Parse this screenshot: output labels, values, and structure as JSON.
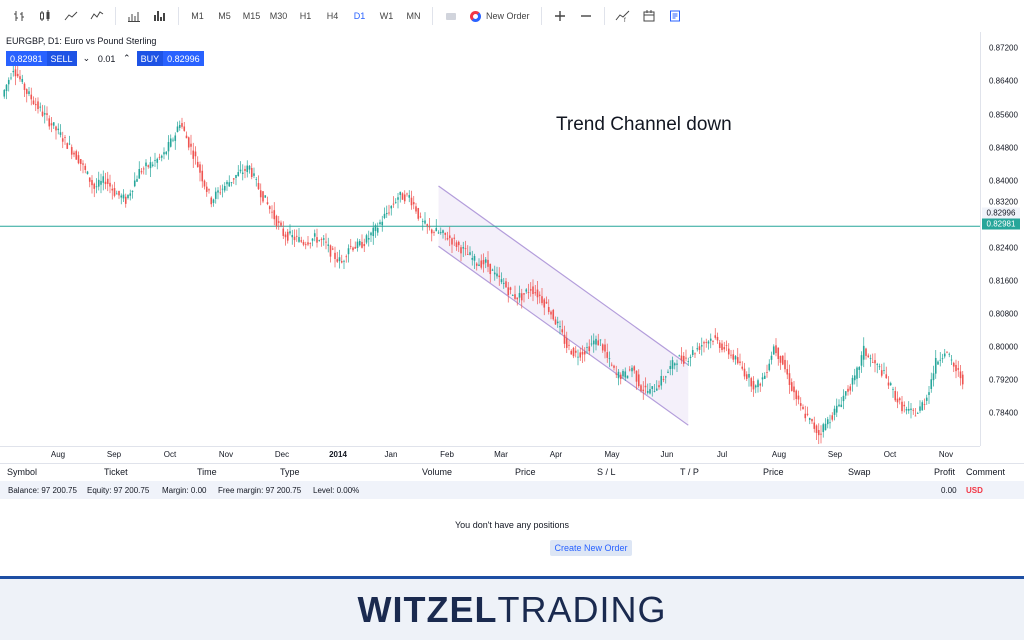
{
  "toolbar": {
    "icons": [
      "bar-chart-icon",
      "candles-icon",
      "line-icon",
      "area-icon",
      "volume-icon",
      "histogram-icon"
    ],
    "timeframes": [
      "M1",
      "M5",
      "M15",
      "M30",
      "H1",
      "H4",
      "D1",
      "W1",
      "MN"
    ],
    "active_timeframe": "D1",
    "new_order_label": "New Order",
    "tools": [
      "zoom-in-icon",
      "zoom-out-icon",
      "indicators-icon",
      "calendar-icon",
      "notes-icon"
    ]
  },
  "symbol": {
    "title": "EURGBP, D1: Euro vs Pound Sterling",
    "sell_price": "0.82981",
    "sell_label": "SELL",
    "lot": "0.01",
    "buy_label": "BUY",
    "buy_price": "0.82996"
  },
  "annotation": "Trend Channel down",
  "price_axis": {
    "ticks": [
      "0.87200",
      "0.86400",
      "0.85600",
      "0.84800",
      "0.84000",
      "0.83200",
      "0.82400",
      "0.81600",
      "0.80800",
      "0.80000",
      "0.79200",
      "0.78400"
    ],
    "ask_tag": "0.82996",
    "bid_tag": "0.82981"
  },
  "time_axis": {
    "ticks": [
      "Aug",
      "Sep",
      "Oct",
      "Nov",
      "Dec",
      "2014",
      "Jan",
      "Feb",
      "Mar",
      "Apr",
      "May",
      "Jun",
      "Jul",
      "Aug",
      "Sep",
      "Oct",
      "Nov"
    ]
  },
  "positions": {
    "columns": [
      "Symbol",
      "Ticket",
      "Time",
      "Type",
      "Volume",
      "Price",
      "S / L",
      "T / P",
      "Price",
      "Swap",
      "Profit",
      "Comment"
    ],
    "balance": "Balance: 97 200.75",
    "equity": "Equity: 97 200.75",
    "margin": "Margin: 0.00",
    "free_margin": "Free margin: 97 200.75",
    "level": "Level: 0.00%",
    "profit": "0.00",
    "currency": "USD",
    "empty_message": "You don't have any positions",
    "create_button": "Create New Order"
  },
  "brand": {
    "part1": "WITZEL",
    "part2": "TRADING"
  },
  "colors": {
    "up": "#26a69a",
    "down": "#ef5350",
    "accent": "#2962ff",
    "channel": "#b39ddb",
    "bid_line": "#26a69a"
  },
  "chart_data": {
    "type": "candlestick",
    "symbol": "EURGBP",
    "timeframe": "D1",
    "ylim": [
      0.777,
      0.8765
    ],
    "current_bid": 0.82981,
    "current_ask": 0.82996,
    "path": [
      [
        0,
        0.861
      ],
      [
        5,
        0.868
      ],
      [
        11,
        0.862
      ],
      [
        18,
        0.857
      ],
      [
        27,
        0.851
      ],
      [
        34,
        0.846
      ],
      [
        41,
        0.839
      ],
      [
        46,
        0.841
      ],
      [
        50,
        0.838
      ],
      [
        55,
        0.836
      ],
      [
        61,
        0.843
      ],
      [
        67,
        0.845
      ],
      [
        72,
        0.847
      ],
      [
        77,
        0.852
      ],
      [
        79,
        0.855
      ],
      [
        82,
        0.851
      ],
      [
        86,
        0.846
      ],
      [
        90,
        0.84
      ],
      [
        93,
        0.836
      ],
      [
        96,
        0.838
      ],
      [
        100,
        0.84
      ],
      [
        104,
        0.842
      ],
      [
        110,
        0.844
      ],
      [
        113,
        0.84
      ],
      [
        117,
        0.836
      ],
      [
        120,
        0.833
      ],
      [
        125,
        0.828
      ],
      [
        130,
        0.827
      ],
      [
        134,
        0.826
      ],
      [
        139,
        0.827
      ],
      [
        143,
        0.826
      ],
      [
        147,
        0.823
      ],
      [
        151,
        0.821
      ],
      [
        154,
        0.825
      ],
      [
        158,
        0.825
      ],
      [
        161,
        0.826
      ],
      [
        166,
        0.829
      ],
      [
        171,
        0.833
      ],
      [
        176,
        0.837
      ],
      [
        181,
        0.837
      ],
      [
        184,
        0.834
      ],
      [
        186,
        0.831
      ],
      [
        190,
        0.829
      ],
      [
        195,
        0.828
      ],
      [
        199,
        0.827
      ],
      [
        203,
        0.825
      ],
      [
        207,
        0.823
      ],
      [
        211,
        0.821
      ],
      [
        215,
        0.821
      ],
      [
        219,
        0.818
      ],
      [
        223,
        0.816
      ],
      [
        227,
        0.813
      ],
      [
        231,
        0.813
      ],
      [
        235,
        0.815
      ],
      [
        239,
        0.813
      ],
      [
        243,
        0.81
      ],
      [
        247,
        0.806
      ],
      [
        251,
        0.801
      ],
      [
        255,
        0.799
      ],
      [
        259,
        0.8
      ],
      [
        263,
        0.802
      ],
      [
        266,
        0.802
      ],
      [
        269,
        0.798
      ],
      [
        273,
        0.794
      ],
      [
        277,
        0.794
      ],
      [
        280,
        0.796
      ],
      [
        284,
        0.791
      ],
      [
        288,
        0.79
      ],
      [
        292,
        0.792
      ],
      [
        296,
        0.795
      ],
      [
        300,
        0.798
      ],
      [
        304,
        0.798
      ],
      [
        308,
        0.8
      ],
      [
        312,
        0.802
      ],
      [
        316,
        0.803
      ],
      [
        320,
        0.801
      ],
      [
        324,
        0.799
      ],
      [
        327,
        0.797
      ],
      [
        331,
        0.794
      ],
      [
        335,
        0.791
      ],
      [
        339,
        0.794
      ],
      [
        343,
        0.801
      ],
      [
        347,
        0.797
      ],
      [
        351,
        0.791
      ],
      [
        355,
        0.786
      ],
      [
        359,
        0.783
      ],
      [
        363,
        0.78
      ],
      [
        367,
        0.783
      ],
      [
        371,
        0.786
      ],
      [
        375,
        0.79
      ],
      [
        379,
        0.793
      ],
      [
        383,
        0.8
      ],
      [
        387,
        0.797
      ],
      [
        391,
        0.795
      ],
      [
        395,
        0.791
      ],
      [
        399,
        0.787
      ],
      [
        403,
        0.785
      ],
      [
        407,
        0.785
      ],
      [
        411,
        0.789
      ],
      [
        415,
        0.797
      ],
      [
        419,
        0.8
      ],
      [
        423,
        0.796
      ],
      [
        427,
        0.793
      ]
    ],
    "horizontal_line": 0.82981,
    "channel": {
      "upper": [
        [
          194,
          0.8395
        ],
        [
          305,
          0.7965
        ]
      ],
      "lower": [
        [
          194,
          0.825
        ],
        [
          305,
          0.782
        ]
      ]
    }
  }
}
